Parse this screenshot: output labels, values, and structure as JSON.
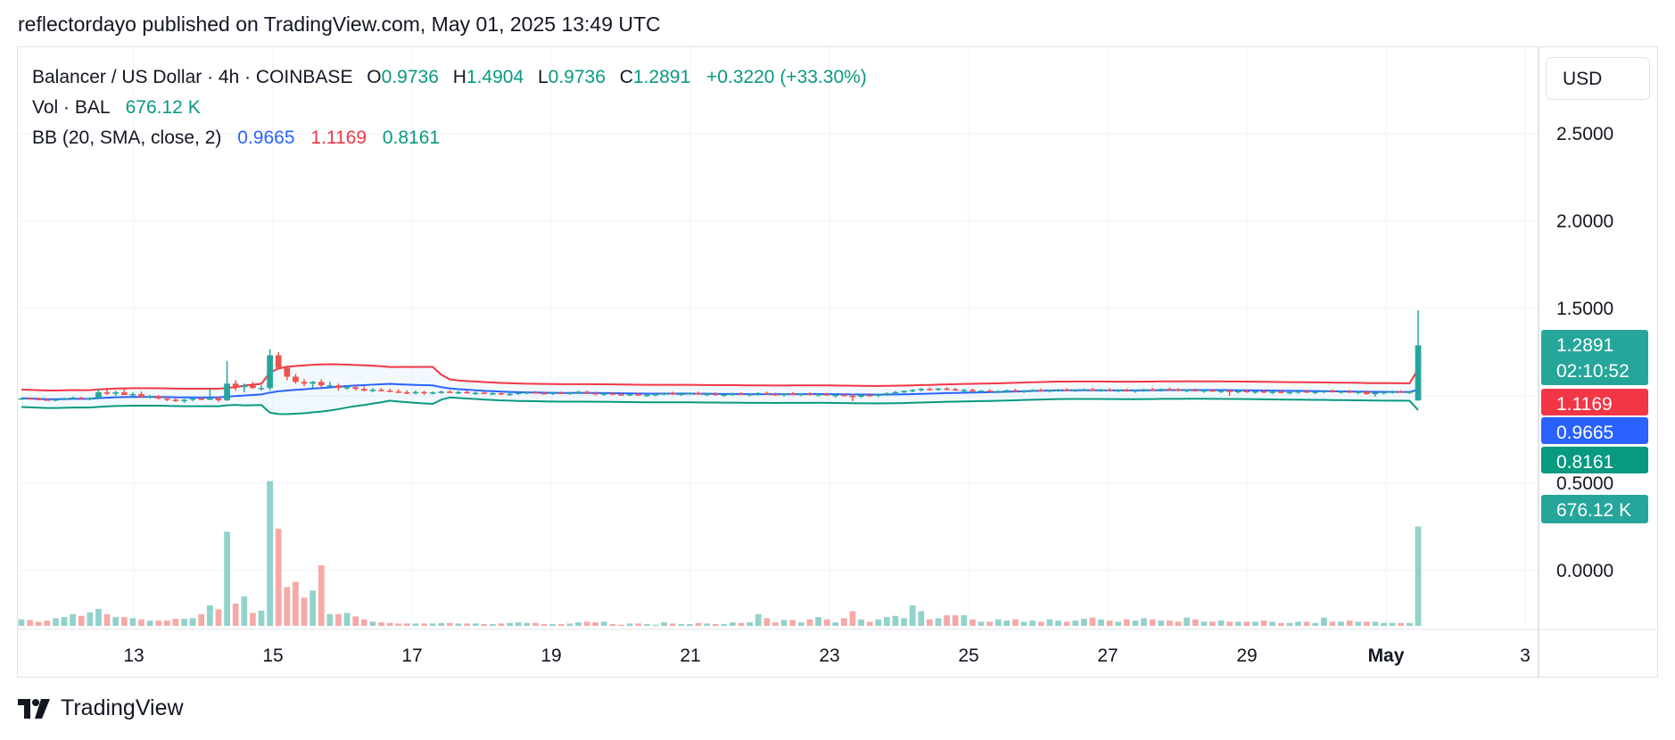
{
  "header": {
    "text": "reflectordayo published on TradingView.com, May 01, 2025 13:49 UTC"
  },
  "legend": {
    "symbol": "Balancer / US Dollar · 4h · COINBASE",
    "o_label": "O",
    "o_value": "0.9736",
    "h_label": "H",
    "h_value": "1.4904",
    "l_label": "L",
    "l_value": "0.9736",
    "c_label": "C",
    "c_value": "1.2891",
    "change": "+0.3220 (+33.30%)",
    "vol_label": "Vol · BAL",
    "vol_value": "676.12 K",
    "bb_label": "BB (20, SMA, close, 2)",
    "bb_basis": "0.9665",
    "bb_upper": "1.1169",
    "bb_lower": "0.8161"
  },
  "currency_button": "USD",
  "footer": {
    "brand": "TradingView"
  },
  "colors": {
    "up": "#26a69a",
    "down": "#ef5350",
    "basis": "#2962ff",
    "upper": "#f23645",
    "lower": "#089981",
    "grid": "#f0f3fa"
  },
  "chart_data": {
    "type": "candlestick",
    "symbol": "Balancer / US Dollar",
    "interval": "4h",
    "exchange": "COINBASE",
    "x_ticks": [
      "13",
      "15",
      "17",
      "19",
      "21",
      "23",
      "25",
      "27",
      "29",
      "May",
      "3"
    ],
    "y_ticks": [
      "2.5000",
      "2.0000",
      "1.5000",
      "0.5000",
      "0.0000"
    ],
    "ylim": [
      -0.35,
      2.85
    ],
    "last_price": {
      "value": "1.2891",
      "countdown": "02:10:52"
    },
    "bb_labels": {
      "upper": "1.1169",
      "basis": "0.9665",
      "lower": "0.8161"
    },
    "volume_label": "676.12 K",
    "candles_ohlcv": [
      [
        0.983,
        0.989,
        0.978,
        0.986,
        22
      ],
      [
        0.986,
        0.992,
        0.98,
        0.983,
        20
      ],
      [
        0.983,
        0.99,
        0.975,
        0.979,
        14
      ],
      [
        0.979,
        0.986,
        0.972,
        0.975,
        18
      ],
      [
        0.975,
        0.983,
        0.968,
        0.98,
        26
      ],
      [
        0.98,
        0.99,
        0.975,
        0.987,
        30
      ],
      [
        0.987,
        0.995,
        0.98,
        0.99,
        40
      ],
      [
        0.99,
        0.995,
        0.978,
        0.982,
        34
      ],
      [
        0.982,
        0.992,
        0.975,
        0.988,
        46
      ],
      [
        0.988,
        1.04,
        0.98,
        1.02,
        58
      ],
      [
        1.02,
        1.035,
        1.005,
        1.012,
        40
      ],
      [
        1.012,
        1.03,
        1.0,
        1.02,
        30
      ],
      [
        1.02,
        1.04,
        1.01,
        1.005,
        30
      ],
      [
        1.005,
        1.02,
        0.995,
        1.01,
        26
      ],
      [
        1.01,
        1.025,
        0.99,
        0.992,
        22
      ],
      [
        0.992,
        1.005,
        0.985,
        0.998,
        18
      ],
      [
        0.998,
        1.005,
        0.98,
        0.985,
        18
      ],
      [
        0.985,
        0.995,
        0.97,
        0.978,
        18
      ],
      [
        0.978,
        0.99,
        0.965,
        0.97,
        24
      ],
      [
        0.97,
        0.982,
        0.96,
        0.978,
        24
      ],
      [
        0.978,
        0.99,
        0.97,
        0.985,
        26
      ],
      [
        0.985,
        0.995,
        0.975,
        0.98,
        40
      ],
      [
        0.98,
        1.04,
        0.975,
        0.985,
        70
      ],
      [
        0.985,
        0.995,
        0.965,
        0.975,
        56
      ],
      [
        0.975,
        1.2,
        0.97,
        1.07,
        320
      ],
      [
        1.07,
        1.09,
        1.03,
        1.05,
        76
      ],
      [
        1.05,
        1.07,
        1.02,
        1.06,
        100
      ],
      [
        1.06,
        1.08,
        1.04,
        1.045,
        44
      ],
      [
        1.045,
        1.06,
        1.03,
        1.045,
        52
      ],
      [
        1.045,
        1.268,
        1.03,
        1.232,
        492
      ],
      [
        1.232,
        1.25,
        1.15,
        1.16,
        330
      ],
      [
        1.16,
        1.175,
        1.09,
        1.11,
        132
      ],
      [
        1.11,
        1.125,
        1.07,
        1.08,
        150
      ],
      [
        1.08,
        1.095,
        1.055,
        1.07,
        96
      ],
      [
        1.07,
        1.085,
        1.045,
        1.08,
        120
      ],
      [
        1.08,
        1.095,
        1.05,
        1.06,
        206
      ],
      [
        1.06,
        1.08,
        1.05,
        1.06,
        40
      ],
      [
        1.06,
        1.07,
        1.03,
        1.045,
        40
      ],
      [
        1.045,
        1.06,
        1.035,
        1.05,
        44
      ],
      [
        1.05,
        1.06,
        1.03,
        1.04,
        32
      ],
      [
        1.04,
        1.055,
        1.025,
        1.03,
        22
      ],
      [
        1.03,
        1.045,
        1.02,
        1.035,
        14
      ],
      [
        1.035,
        1.045,
        1.025,
        1.03,
        12
      ],
      [
        1.03,
        1.04,
        1.02,
        1.025,
        10
      ],
      [
        1.025,
        1.038,
        1.015,
        1.02,
        8
      ],
      [
        1.02,
        1.032,
        1.01,
        1.015,
        8
      ],
      [
        1.015,
        1.03,
        1.008,
        1.022,
        8
      ],
      [
        1.022,
        1.03,
        1.005,
        1.015,
        8
      ],
      [
        1.015,
        1.025,
        1.008,
        1.02,
        8
      ],
      [
        1.02,
        1.03,
        1.012,
        1.024,
        10
      ],
      [
        1.024,
        1.032,
        1.015,
        1.018,
        10
      ],
      [
        1.018,
        1.028,
        1.01,
        1.022,
        8
      ],
      [
        1.022,
        1.03,
        1.012,
        1.015,
        8
      ],
      [
        1.015,
        1.025,
        1.005,
        1.018,
        8
      ],
      [
        1.018,
        1.025,
        1.01,
        1.012,
        6
      ],
      [
        1.012,
        1.022,
        1.005,
        1.015,
        6
      ],
      [
        1.015,
        1.022,
        1.005,
        1.01,
        8
      ],
      [
        1.01,
        1.018,
        1.0,
        1.012,
        10
      ],
      [
        1.012,
        1.02,
        1.005,
        1.018,
        12
      ],
      [
        1.018,
        1.026,
        1.01,
        1.02,
        10
      ],
      [
        1.02,
        1.028,
        1.012,
        1.016,
        10
      ],
      [
        1.016,
        1.024,
        1.008,
        1.012,
        6
      ],
      [
        1.012,
        1.022,
        1.005,
        1.018,
        6
      ],
      [
        1.018,
        1.025,
        1.01,
        1.014,
        6
      ],
      [
        1.014,
        1.022,
        1.006,
        1.018,
        8
      ],
      [
        1.018,
        1.028,
        1.01,
        1.024,
        12
      ],
      [
        1.024,
        1.03,
        1.012,
        1.016,
        14
      ],
      [
        1.016,
        1.024,
        1.002,
        1.008,
        12
      ],
      [
        1.008,
        1.018,
        1.0,
        1.014,
        14
      ],
      [
        1.014,
        1.022,
        1.004,
        1.01,
        6
      ],
      [
        1.01,
        1.018,
        1.0,
        1.006,
        4
      ],
      [
        1.006,
        1.014,
        0.998,
        1.01,
        8
      ],
      [
        1.01,
        1.018,
        1.0,
        1.002,
        8
      ],
      [
        1.002,
        1.012,
        0.995,
        1.006,
        6
      ],
      [
        1.006,
        1.015,
        0.998,
        1.01,
        4
      ],
      [
        1.01,
        1.02,
        1.002,
        1.015,
        12
      ],
      [
        1.015,
        1.024,
        1.005,
        1.01,
        8
      ],
      [
        1.01,
        1.02,
        1.0,
        1.012,
        6
      ],
      [
        1.012,
        1.02,
        1.005,
        1.016,
        6
      ],
      [
        1.016,
        1.024,
        1.006,
        1.008,
        10
      ],
      [
        1.008,
        1.016,
        0.998,
        1.012,
        8
      ],
      [
        1.012,
        1.02,
        1.0,
        1.004,
        6
      ],
      [
        1.004,
        1.012,
        0.995,
        1.008,
        6
      ],
      [
        1.008,
        1.018,
        1.0,
        1.012,
        12
      ],
      [
        1.012,
        1.02,
        1.004,
        1.006,
        10
      ],
      [
        1.006,
        1.014,
        0.998,
        1.01,
        12
      ],
      [
        1.01,
        1.02,
        1.002,
        1.016,
        40
      ],
      [
        1.016,
        1.024,
        1.006,
        1.01,
        26
      ],
      [
        1.01,
        1.018,
        1.0,
        1.006,
        12
      ],
      [
        1.006,
        1.016,
        0.996,
        1.012,
        20
      ],
      [
        1.012,
        1.022,
        1.004,
        1.008,
        20
      ],
      [
        1.008,
        1.016,
        0.998,
        1.012,
        12
      ],
      [
        1.012,
        1.02,
        1.002,
        1.006,
        22
      ],
      [
        1.006,
        1.014,
        0.996,
        1.01,
        30
      ],
      [
        1.01,
        1.018,
        1.0,
        1.002,
        22
      ],
      [
        1.002,
        1.012,
        0.99,
        1.006,
        12
      ],
      [
        1.006,
        1.014,
        0.996,
        1.0,
        26
      ],
      [
        1.0,
        1.01,
        0.97,
        0.995,
        50
      ],
      [
        0.995,
        1.01,
        0.988,
        1.005,
        22
      ],
      [
        1.005,
        1.015,
        0.995,
        1.0,
        14
      ],
      [
        1.0,
        1.012,
        0.992,
        1.008,
        22
      ],
      [
        1.008,
        1.02,
        1.0,
        1.015,
        30
      ],
      [
        1.015,
        1.028,
        1.008,
        1.022,
        34
      ],
      [
        1.022,
        1.032,
        1.012,
        1.028,
        26
      ],
      [
        1.028,
        1.038,
        1.02,
        1.034,
        70
      ],
      [
        1.034,
        1.045,
        1.025,
        1.04,
        50
      ],
      [
        1.04,
        1.048,
        1.03,
        1.036,
        22
      ],
      [
        1.036,
        1.044,
        1.028,
        1.042,
        26
      ],
      [
        1.042,
        1.05,
        1.032,
        1.038,
        36
      ],
      [
        1.038,
        1.046,
        1.028,
        1.03,
        36
      ],
      [
        1.03,
        1.04,
        1.022,
        1.034,
        36
      ],
      [
        1.034,
        1.042,
        1.02,
        1.026,
        22
      ],
      [
        1.026,
        1.034,
        1.016,
        1.03,
        14
      ],
      [
        1.03,
        1.038,
        1.02,
        1.024,
        14
      ],
      [
        1.024,
        1.032,
        1.014,
        1.028,
        22
      ],
      [
        1.028,
        1.036,
        1.018,
        1.032,
        18
      ],
      [
        1.032,
        1.04,
        1.022,
        1.026,
        22
      ],
      [
        1.026,
        1.034,
        1.016,
        1.03,
        14
      ],
      [
        1.03,
        1.038,
        1.022,
        1.034,
        18
      ],
      [
        1.034,
        1.042,
        1.024,
        1.028,
        14
      ],
      [
        1.028,
        1.036,
        1.02,
        1.032,
        22
      ],
      [
        1.032,
        1.04,
        1.024,
        1.036,
        18
      ],
      [
        1.036,
        1.044,
        1.026,
        1.03,
        14
      ],
      [
        1.03,
        1.038,
        1.022,
        1.034,
        18
      ],
      [
        1.034,
        1.042,
        1.026,
        1.038,
        24
      ],
      [
        1.038,
        1.046,
        1.028,
        1.032,
        28
      ],
      [
        1.032,
        1.04,
        1.022,
        1.036,
        22
      ],
      [
        1.036,
        1.044,
        1.028,
        1.03,
        18
      ],
      [
        1.03,
        1.038,
        1.02,
        1.034,
        14
      ],
      [
        1.034,
        1.042,
        1.024,
        1.028,
        22
      ],
      [
        1.028,
        1.036,
        1.018,
        1.032,
        18
      ],
      [
        1.032,
        1.04,
        1.022,
        1.038,
        26
      ],
      [
        1.038,
        1.046,
        1.028,
        1.034,
        22
      ],
      [
        1.034,
        1.042,
        1.024,
        1.04,
        18
      ],
      [
        1.04,
        1.048,
        1.03,
        1.036,
        18
      ],
      [
        1.036,
        1.044,
        1.026,
        1.03,
        14
      ],
      [
        1.03,
        1.038,
        1.02,
        1.034,
        28
      ],
      [
        1.034,
        1.042,
        1.024,
        1.028,
        22
      ],
      [
        1.028,
        1.036,
        1.018,
        1.032,
        14
      ],
      [
        1.032,
        1.04,
        1.022,
        1.026,
        14
      ],
      [
        1.026,
        1.034,
        1.016,
        1.03,
        18
      ],
      [
        1.03,
        1.038,
        1.0,
        1.024,
        14
      ],
      [
        1.024,
        1.032,
        1.014,
        1.028,
        14
      ],
      [
        1.028,
        1.036,
        1.018,
        1.022,
        14
      ],
      [
        1.022,
        1.03,
        1.012,
        1.026,
        14
      ],
      [
        1.026,
        1.034,
        1.016,
        1.02,
        18
      ],
      [
        1.02,
        1.028,
        1.01,
        1.024,
        14
      ],
      [
        1.024,
        1.032,
        1.014,
        1.018,
        10
      ],
      [
        1.018,
        1.026,
        1.008,
        1.022,
        10
      ],
      [
        1.022,
        1.03,
        1.012,
        1.026,
        14
      ],
      [
        1.026,
        1.034,
        1.016,
        1.02,
        14
      ],
      [
        1.02,
        1.028,
        1.01,
        1.024,
        10
      ],
      [
        1.024,
        1.032,
        1.014,
        1.028,
        28
      ],
      [
        1.028,
        1.036,
        1.018,
        1.022,
        14
      ],
      [
        1.022,
        1.03,
        1.012,
        1.026,
        14
      ],
      [
        1.026,
        1.034,
        1.016,
        1.02,
        18
      ],
      [
        1.02,
        1.028,
        1.01,
        1.024,
        14
      ],
      [
        1.024,
        1.032,
        1.006,
        1.01,
        14
      ],
      [
        1.01,
        1.02,
        0.995,
        1.018,
        14
      ],
      [
        1.018,
        1.026,
        1.008,
        1.022,
        10
      ],
      [
        1.022,
        1.03,
        1.012,
        1.026,
        10
      ],
      [
        1.026,
        1.032,
        1.016,
        1.02,
        10
      ],
      [
        1.02,
        1.028,
        1.01,
        1.024,
        10
      ],
      [
        0.9736,
        1.4904,
        0.9736,
        1.2891,
        338
      ]
    ]
  }
}
